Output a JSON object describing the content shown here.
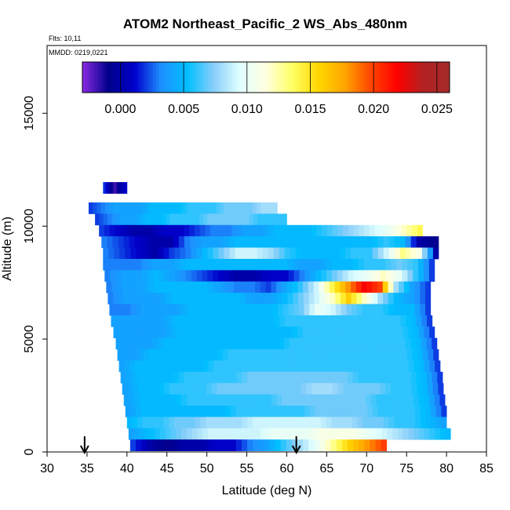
{
  "chart_data": {
    "type": "heatmap",
    "title": "ATOM2 Northeast_Pacific_2 WS_Abs_480nm",
    "flights_label": "Flts: 10,11",
    "dates_label": "MMDD: 0219,0221",
    "xlabel": "Latitude (deg N)",
    "ylabel": "Altitude (m)",
    "xlim": [
      30,
      85
    ],
    "ylim": [
      0,
      18000
    ],
    "x_ticks": [
      "30",
      "35",
      "40",
      "45",
      "50",
      "55",
      "60",
      "65",
      "70",
      "75",
      "80",
      "85"
    ],
    "y_ticks": [
      "0",
      "5000",
      "10000",
      "15000"
    ],
    "colorbar": {
      "range": [
        -0.003,
        0.026
      ],
      "tick_values": [
        0.0,
        0.005,
        0.01,
        0.015,
        0.02,
        0.025
      ],
      "tick_labels": [
        "0.000",
        "0.005",
        "0.010",
        "0.015",
        "0.020",
        "0.025"
      ],
      "colors": [
        "#8a2be2",
        "#00008b",
        "#0000cd",
        "#1e90ff",
        "#00bfff",
        "#87cefa",
        "#e0ffff",
        "#ffffe0",
        "#ffff66",
        "#ffd700",
        "#ffa500",
        "#ff4500",
        "#ff0000",
        "#b22222",
        "#a52a2a"
      ]
    },
    "arrows_lat": [
      34.7,
      61.2
    ],
    "layers": [
      {
        "alt": 11700,
        "lat_start": 37.0,
        "lat_end": 40.0,
        "values": [
          0.002,
          0.0,
          -0.002,
          0.0,
          0.001
        ]
      },
      {
        "alt": 10800,
        "lat_start": 35.2,
        "lat_end": 58.8,
        "values": [
          0.002,
          0.003,
          0.004,
          0.004,
          0.004,
          0.005,
          0.005,
          0.005,
          0.006,
          0.006,
          0.006,
          0.007,
          0.007,
          0.007,
          0.008,
          0.008
        ]
      },
      {
        "alt": 10300,
        "lat_start": 36.0,
        "lat_end": 60.0,
        "values": [
          0.002,
          0.003,
          0.004,
          0.004,
          0.005,
          0.005,
          0.006,
          0.006,
          0.006,
          0.007,
          0.007,
          0.007,
          0.007,
          0.006,
          0.006,
          0.006
        ]
      },
      {
        "alt": 9800,
        "lat_start": 36.5,
        "lat_end": 77.0,
        "values": [
          0.002,
          0.001,
          0.0,
          0.0,
          0.001,
          0.001,
          0.002,
          0.003,
          0.003,
          0.004,
          0.004,
          0.005,
          0.005,
          0.005,
          0.006,
          0.007,
          0.008,
          0.009,
          0.01,
          0.012,
          0.014
        ]
      },
      {
        "alt": 9300,
        "lat_start": 36.8,
        "lat_end": 79.0,
        "values": [
          0.003,
          0.002,
          0.001,
          0.0,
          0.0,
          0.003,
          0.004,
          0.004,
          0.005,
          0.005,
          0.005,
          0.005,
          0.005,
          0.005,
          0.005,
          0.005,
          0.005,
          0.006,
          0.005,
          0.0,
          -0.001
        ]
      },
      {
        "alt": 8800,
        "lat_start": 37.0,
        "lat_end": 79.0,
        "values": [
          0.003,
          0.002,
          0.001,
          0.0,
          0.002,
          0.003,
          0.005,
          0.007,
          0.009,
          0.009,
          0.008,
          0.006,
          0.005,
          0.005,
          0.005,
          0.006,
          0.006,
          0.009,
          0.013,
          0.011,
          0.0
        ]
      },
      {
        "alt": 8300,
        "lat_start": 37.0,
        "lat_end": 78.5,
        "values": [
          0.003,
          0.003,
          0.003,
          0.004,
          0.004,
          0.005,
          0.005,
          0.005,
          0.005,
          0.005,
          0.005,
          0.005,
          0.004,
          0.004,
          0.005,
          0.005,
          0.006,
          0.006,
          0.007,
          0.006,
          0.002
        ]
      },
      {
        "alt": 7800,
        "lat_start": 37.2,
        "lat_end": 78.5,
        "values": [
          0.003,
          0.004,
          0.004,
          0.005,
          0.004,
          0.003,
          0.002,
          0.001,
          0.0,
          0.0,
          0.001,
          0.001,
          0.003,
          0.005,
          0.007,
          0.009,
          0.01,
          0.012,
          0.01,
          0.006,
          0.002
        ]
      },
      {
        "alt": 7300,
        "lat_start": 37.4,
        "lat_end": 78.0,
        "values": [
          0.003,
          0.004,
          0.004,
          0.005,
          0.005,
          0.005,
          0.005,
          0.004,
          0.003,
          0.003,
          0.002,
          0.004,
          0.006,
          0.009,
          0.014,
          0.018,
          0.022,
          0.02,
          0.008,
          0.004,
          0.002
        ]
      },
      {
        "alt": 6800,
        "lat_start": 37.6,
        "lat_end": 78.0,
        "values": [
          0.003,
          0.004,
          0.004,
          0.004,
          0.005,
          0.005,
          0.005,
          0.005,
          0.005,
          0.004,
          0.004,
          0.005,
          0.007,
          0.009,
          0.012,
          0.016,
          0.012,
          0.008,
          0.005,
          0.004,
          0.002
        ]
      },
      {
        "alt": 6300,
        "lat_start": 37.8,
        "lat_end": 78.0,
        "values": [
          0.003,
          0.003,
          0.004,
          0.004,
          0.004,
          0.005,
          0.005,
          0.005,
          0.005,
          0.005,
          0.005,
          0.006,
          0.007,
          0.01,
          0.009,
          0.007,
          0.006,
          0.006,
          0.005,
          0.005,
          0.002
        ]
      },
      {
        "alt": 5800,
        "lat_start": 38.0,
        "lat_end": 78.2,
        "values": [
          0.004,
          0.004,
          0.004,
          0.004,
          0.005,
          0.005,
          0.005,
          0.005,
          0.005,
          0.005,
          0.005,
          0.006,
          0.006,
          0.006,
          0.006,
          0.006,
          0.006,
          0.006,
          0.006,
          0.005,
          0.002
        ]
      },
      {
        "alt": 5300,
        "lat_start": 38.3,
        "lat_end": 78.5,
        "values": [
          0.004,
          0.004,
          0.004,
          0.004,
          0.005,
          0.005,
          0.005,
          0.005,
          0.005,
          0.005,
          0.005,
          0.005,
          0.006,
          0.006,
          0.006,
          0.006,
          0.006,
          0.006,
          0.006,
          0.005,
          0.002
        ]
      },
      {
        "alt": 4800,
        "lat_start": 38.6,
        "lat_end": 78.8,
        "values": [
          0.004,
          0.004,
          0.004,
          0.005,
          0.005,
          0.005,
          0.005,
          0.005,
          0.005,
          0.005,
          0.005,
          0.006,
          0.006,
          0.006,
          0.006,
          0.006,
          0.006,
          0.006,
          0.006,
          0.005,
          0.002
        ]
      },
      {
        "alt": 4300,
        "lat_start": 38.8,
        "lat_end": 79.0,
        "values": [
          0.004,
          0.004,
          0.005,
          0.005,
          0.005,
          0.005,
          0.005,
          0.006,
          0.006,
          0.006,
          0.006,
          0.006,
          0.006,
          0.006,
          0.006,
          0.006,
          0.006,
          0.006,
          0.006,
          0.005,
          0.002
        ]
      },
      {
        "alt": 3800,
        "lat_start": 39.0,
        "lat_end": 79.2,
        "values": [
          0.004,
          0.005,
          0.005,
          0.005,
          0.005,
          0.005,
          0.006,
          0.006,
          0.006,
          0.006,
          0.006,
          0.006,
          0.006,
          0.006,
          0.006,
          0.006,
          0.006,
          0.006,
          0.006,
          0.005,
          0.002
        ]
      },
      {
        "alt": 3300,
        "lat_start": 39.2,
        "lat_end": 79.5,
        "values": [
          0.004,
          0.005,
          0.005,
          0.005,
          0.006,
          0.006,
          0.006,
          0.006,
          0.007,
          0.007,
          0.007,
          0.007,
          0.007,
          0.007,
          0.007,
          0.006,
          0.006,
          0.006,
          0.006,
          0.005,
          0.002
        ]
      },
      {
        "alt": 2800,
        "lat_start": 39.4,
        "lat_end": 79.6,
        "values": [
          0.004,
          0.005,
          0.005,
          0.006,
          0.006,
          0.006,
          0.007,
          0.007,
          0.007,
          0.007,
          0.007,
          0.007,
          0.008,
          0.008,
          0.007,
          0.007,
          0.007,
          0.006,
          0.006,
          0.005,
          0.002
        ]
      },
      {
        "alt": 2300,
        "lat_start": 39.6,
        "lat_end": 79.8,
        "values": [
          0.004,
          0.005,
          0.005,
          0.005,
          0.006,
          0.006,
          0.006,
          0.006,
          0.006,
          0.006,
          0.007,
          0.007,
          0.007,
          0.007,
          0.007,
          0.007,
          0.006,
          0.006,
          0.006,
          0.005,
          0.002
        ]
      },
      {
        "alt": 1800,
        "lat_start": 39.8,
        "lat_end": 80.0,
        "values": [
          0.004,
          0.005,
          0.005,
          0.005,
          0.005,
          0.005,
          0.005,
          0.006,
          0.006,
          0.006,
          0.006,
          0.006,
          0.007,
          0.007,
          0.007,
          0.007,
          0.006,
          0.006,
          0.006,
          0.005,
          0.002
        ]
      },
      {
        "alt": 1300,
        "lat_start": 40.0,
        "lat_end": 80.0,
        "values": [
          0.005,
          0.006,
          0.006,
          0.007,
          0.007,
          0.008,
          0.008,
          0.008,
          0.009,
          0.009,
          0.009,
          0.009,
          0.009,
          0.008,
          0.008,
          0.007,
          0.007,
          0.006,
          0.006,
          0.005,
          0.004
        ]
      },
      {
        "alt": 800,
        "lat_start": 40.2,
        "lat_end": 80.5,
        "values": [
          0.004,
          0.005,
          0.006,
          0.007,
          0.008,
          0.009,
          0.009,
          0.009,
          0.009,
          0.01,
          0.01,
          0.01,
          0.011,
          0.011,
          0.011,
          0.01,
          0.009,
          0.008,
          0.007,
          0.006,
          0.005
        ]
      },
      {
        "alt": 300,
        "lat_start": 40.4,
        "lat_end": 72.5,
        "values": [
          0.002,
          0.0,
          -0.001,
          0.0,
          0.0,
          0.001,
          0.001,
          0.003,
          0.004,
          0.006,
          0.008,
          0.01,
          0.013,
          0.016,
          0.018,
          0.02
        ]
      }
    ]
  }
}
